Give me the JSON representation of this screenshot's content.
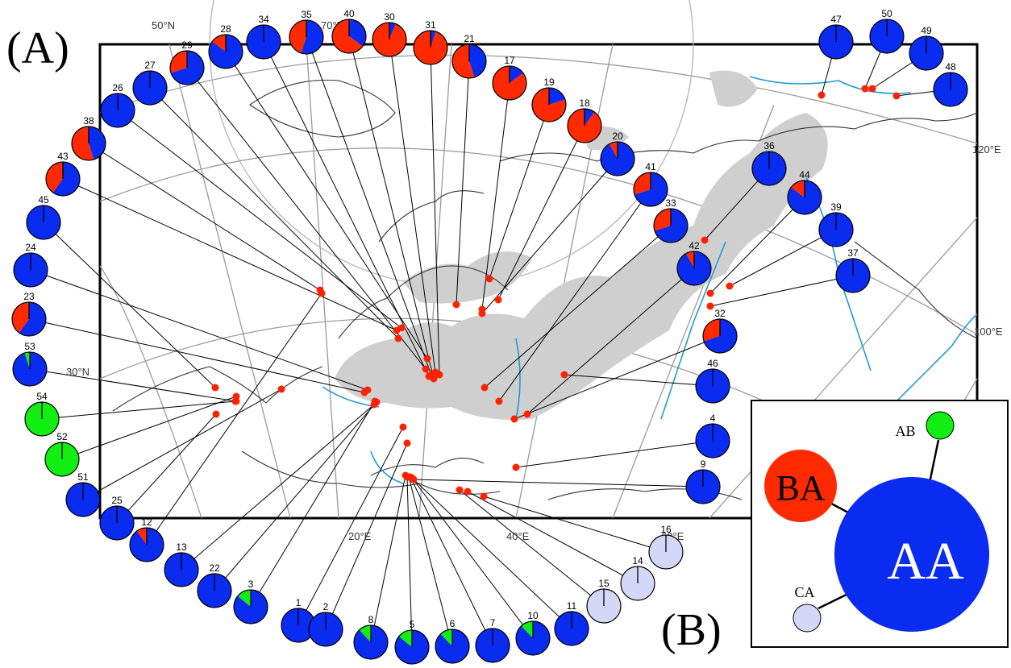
{
  "labels": {
    "panel_a": "(A)",
    "panel_b": "(B)",
    "lat_30": "30°N",
    "lat_50": "50°N",
    "lat_70": "70°N",
    "lon_20": "20°E",
    "lon_40": "40°E",
    "lon_60": "60°E",
    "lon_100": "100°E",
    "lon_120": "120°E"
  },
  "colors": {
    "AA": "#0a2bf0",
    "BA": "#ff2a00",
    "AB": "#11ee11",
    "CA": "#d4d8f8",
    "range": "#cfcfcf",
    "water": "#1e9bd8",
    "site": "#ff2200"
  },
  "network": {
    "nodes": [
      {
        "name": "AA",
        "label": "AA"
      },
      {
        "name": "BA",
        "label": "BA"
      },
      {
        "name": "AB",
        "label": "AB"
      },
      {
        "name": "CA",
        "label": "CA"
      }
    ]
  },
  "populations": [
    {
      "id": "1",
      "AA": 1.0
    },
    {
      "id": "2",
      "AA": 1.0
    },
    {
      "id": "3",
      "AA": 0.86,
      "AB": 0.14
    },
    {
      "id": "4",
      "AA": 1.0
    },
    {
      "id": "5",
      "AA": 0.86,
      "AB": 0.14
    },
    {
      "id": "6",
      "AA": 0.88,
      "AB": 0.12
    },
    {
      "id": "7",
      "AA": 1.0
    },
    {
      "id": "8",
      "AA": 0.88,
      "AB": 0.12
    },
    {
      "id": "9",
      "AA": 1.0
    },
    {
      "id": "10",
      "AA": 0.88,
      "AB": 0.12
    },
    {
      "id": "11",
      "AA": 1.0
    },
    {
      "id": "12",
      "AA": 0.9,
      "BA": 0.1
    },
    {
      "id": "13",
      "AA": 1.0
    },
    {
      "id": "14",
      "CA": 1.0
    },
    {
      "id": "15",
      "CA": 1.0
    },
    {
      "id": "16",
      "CA": 1.0
    },
    {
      "id": "17",
      "AA": 0.15,
      "BA": 0.85
    },
    {
      "id": "18",
      "AA": 0.1,
      "BA": 0.9
    },
    {
      "id": "19",
      "AA": 0.2,
      "BA": 0.8
    },
    {
      "id": "20",
      "AA": 0.92,
      "BA": 0.08
    },
    {
      "id": "21",
      "AA": 0.45,
      "BA": 0.55
    },
    {
      "id": "22",
      "AA": 1.0
    },
    {
      "id": "23",
      "AA": 0.6,
      "BA": 0.4
    },
    {
      "id": "24",
      "AA": 1.0
    },
    {
      "id": "25",
      "AA": 1.0
    },
    {
      "id": "26",
      "AA": 1.0
    },
    {
      "id": "27",
      "AA": 1.0
    },
    {
      "id": "28",
      "AA": 0.85,
      "BA": 0.15
    },
    {
      "id": "29",
      "AA": 0.7,
      "BA": 0.3
    },
    {
      "id": "30",
      "AA": 0.06,
      "BA": 0.94
    },
    {
      "id": "31",
      "AA": 0.05,
      "BA": 0.95
    },
    {
      "id": "32",
      "AA": 0.7,
      "BA": 0.3
    },
    {
      "id": "33",
      "AA": 0.7,
      "BA": 0.3
    },
    {
      "id": "34",
      "AA": 1.0
    },
    {
      "id": "35",
      "AA": 0.55,
      "BA": 0.45
    },
    {
      "id": "36",
      "AA": 1.0
    },
    {
      "id": "37",
      "AA": 1.0
    },
    {
      "id": "38",
      "AA": 0.45,
      "BA": 0.55
    },
    {
      "id": "39",
      "AA": 1.0
    },
    {
      "id": "40",
      "AA": 0.35,
      "BA": 0.65
    },
    {
      "id": "41",
      "AA": 0.7,
      "BA": 0.3
    },
    {
      "id": "42",
      "AA": 0.92,
      "BA": 0.08
    },
    {
      "id": "43",
      "AA": 0.6,
      "BA": 0.4
    },
    {
      "id": "44",
      "AA": 0.85,
      "BA": 0.15
    },
    {
      "id": "45",
      "AA": 1.0
    },
    {
      "id": "46",
      "AA": 1.0
    },
    {
      "id": "47",
      "AA": 1.0
    },
    {
      "id": "48",
      "AA": 1.0
    },
    {
      "id": "49",
      "AA": 1.0
    },
    {
      "id": "50",
      "AA": 1.0
    },
    {
      "id": "51",
      "AA": 1.0
    },
    {
      "id": "52",
      "AB": 1.0
    },
    {
      "id": "53",
      "AA": 0.95,
      "AB": 0.05
    },
    {
      "id": "54",
      "AB": 1.0
    }
  ]
}
